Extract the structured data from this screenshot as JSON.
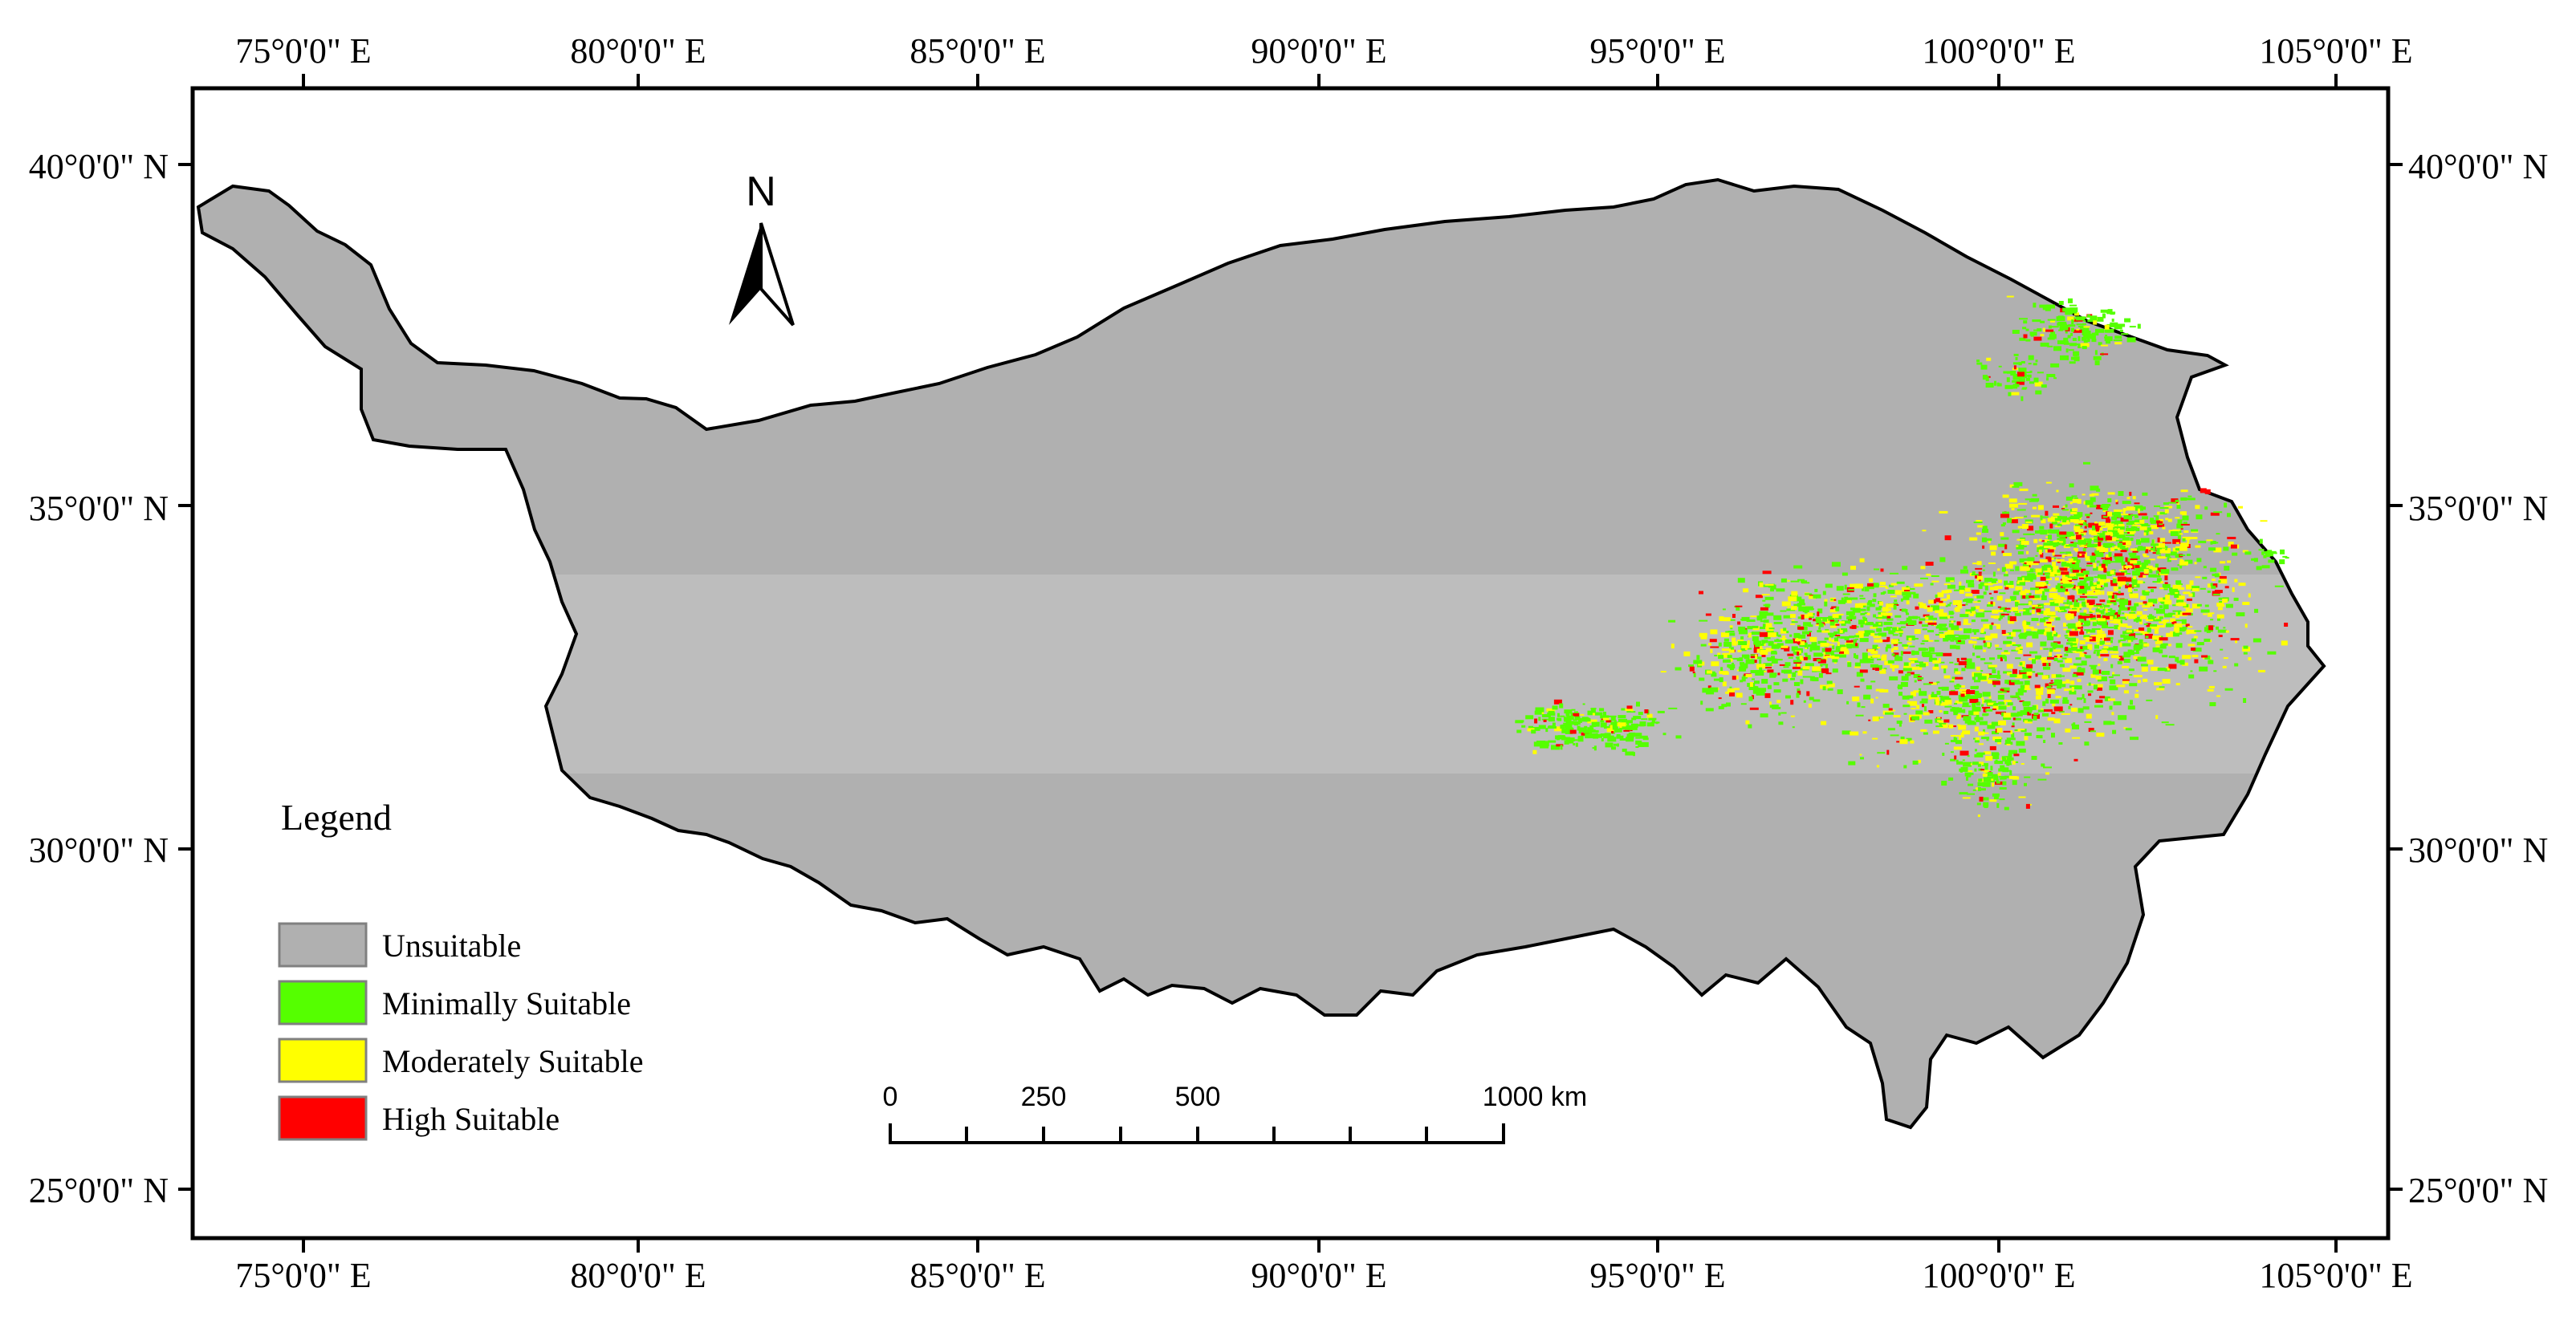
{
  "map": {
    "lon_ticks": [
      "75°0'0\" E",
      "80°0'0\" E",
      "85°0'0\" E",
      "90°0'0\" E",
      "95°0'0\" E",
      "100°0'0\" E",
      "105°0'0\" E"
    ],
    "lat_ticks": [
      "40°0'0\" N",
      "35°0'0\" N",
      "30°0'0\" N",
      "25°0'0\" N"
    ],
    "north_arrow": {
      "label": "N",
      "icon": "north-arrow-icon"
    },
    "legend": {
      "title": "Legend",
      "items": [
        {
          "label": "Unsuitable",
          "color": "#b0b0b0"
        },
        {
          "label": "Minimally Suitable",
          "color": "#55ff00"
        },
        {
          "label": "Moderately Suitable",
          "color": "#ffff00"
        },
        {
          "label": "High Suitable",
          "color": "#ff0000"
        }
      ]
    },
    "scale_bar": {
      "labels": [
        "0",
        "250",
        "500",
        "1000 km"
      ]
    },
    "colors": {
      "region": "#b0b0b0",
      "band": "#bdbdbd",
      "outline": "#000000"
    }
  }
}
